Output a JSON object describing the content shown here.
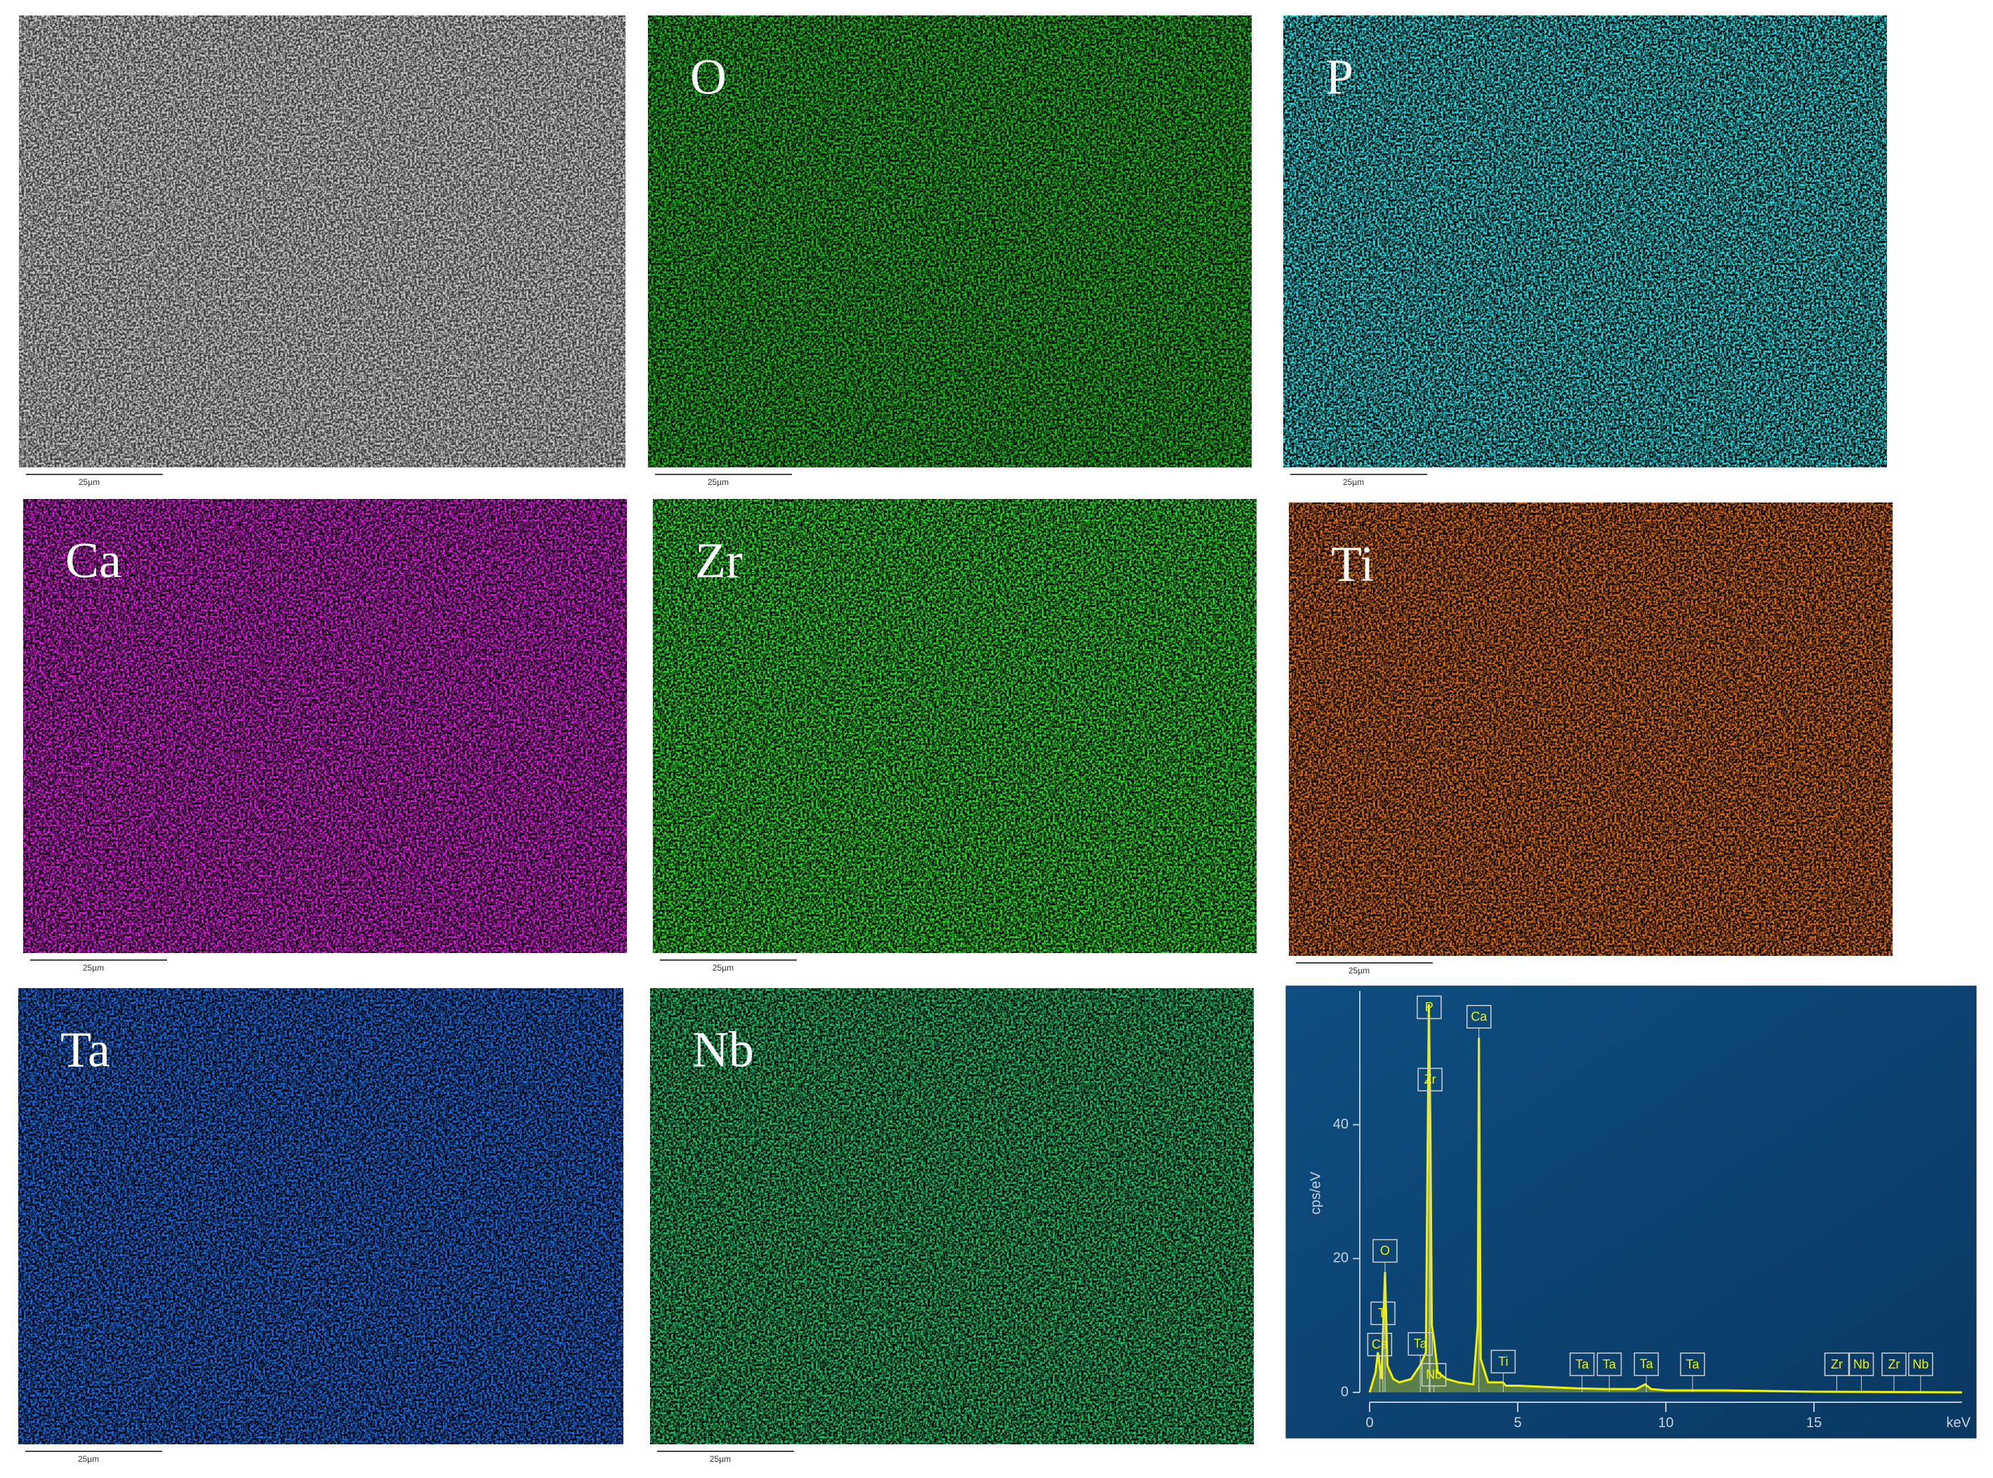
{
  "panels": [
    {
      "scale_bar": "25µm",
      "color": "#c8c8c8"
    },
    {
      "label": "O",
      "scale_bar": "25µm",
      "color": "#22c422"
    },
    {
      "label": "P",
      "scale_bar": "25µm",
      "color": "#2fe0e6"
    },
    {
      "label": "Ca",
      "scale_bar": "25µm",
      "color": "#e020e0"
    },
    {
      "label": "Zr",
      "scale_bar": "25µm",
      "color": "#2ee02e"
    },
    {
      "label": "Ti",
      "scale_bar": "25µm",
      "color": "#e0701e"
    },
    {
      "label": "Ta",
      "scale_bar": "25µm",
      "color": "#1e6ee6"
    },
    {
      "label": "Nb",
      "scale_bar": "25µm",
      "color": "#22c46a"
    }
  ],
  "chart_data": {
    "type": "line",
    "y_label": "cps/eV",
    "x_unit": "keV",
    "xlim": [
      0,
      20
    ],
    "xticks": [
      0,
      5,
      10,
      15
    ],
    "ylim": [
      0,
      60
    ],
    "yticks": [
      0,
      20,
      40
    ],
    "series": [
      {
        "color": "#f2f200",
        "x": [
          0,
          0.2,
          0.28,
          0.4,
          0.52,
          0.6,
          0.8,
          1.0,
          1.4,
          1.7,
          1.9,
          2.0,
          2.05,
          2.1,
          2.17,
          2.3,
          2.6,
          3.0,
          3.5,
          3.65,
          3.69,
          3.75,
          4.0,
          4.5,
          4.6,
          5,
          6,
          7,
          8,
          9,
          9.3,
          9.5,
          10,
          12,
          15,
          20
        ],
        "values": [
          0,
          3,
          6,
          2,
          18,
          4,
          2,
          1.5,
          2,
          4,
          6,
          58,
          40,
          10,
          8,
          3,
          2,
          1.5,
          1.2,
          10,
          53,
          5,
          1.5,
          1.5,
          1,
          1,
          0.8,
          0.6,
          0.5,
          0.5,
          1.2,
          0.5,
          0.3,
          0.3,
          0.1,
          0
        ]
      }
    ],
    "peak_labels": [
      {
        "text": "P",
        "x": 2.01
      },
      {
        "text": "Zr",
        "x": 2.04
      },
      {
        "text": "Ca",
        "x": 3.69
      },
      {
        "text": "O",
        "x": 0.52
      },
      {
        "text": "Ta",
        "x": 1.71
      },
      {
        "text": "Ca",
        "x": 0.34
      },
      {
        "text": "Nb",
        "x": 2.17
      },
      {
        "text": "Ti",
        "x": 0.45
      },
      {
        "text": "Ti",
        "x": 4.51
      },
      {
        "text": "Ta",
        "x": 7.17
      },
      {
        "text": "Ta",
        "x": 8.09
      },
      {
        "text": "Ta",
        "x": 9.34
      },
      {
        "text": "Ta",
        "x": 10.9
      },
      {
        "text": "Zr",
        "x": 15.77
      },
      {
        "text": "Nb",
        "x": 16.6
      },
      {
        "text": "Zr",
        "x": 17.7
      },
      {
        "text": "Nb",
        "x": 18.6
      }
    ]
  }
}
